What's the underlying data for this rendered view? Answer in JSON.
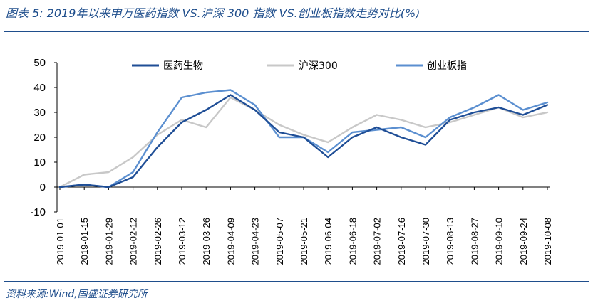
{
  "title": "图表 5:  2019年以来申万医药指数 VS.沪深 300 指数 VS.创业板指数走势对比(%)",
  "source": "资料来源:Wind,国盛证券研究所",
  "colors": {
    "title": "#1f4e8c",
    "pharma": "#1f4e96",
    "csi300": "#c8c8c8",
    "chinext": "#5b8fd0"
  },
  "chart_data": {
    "type": "line",
    "ylim": [
      -10,
      50
    ],
    "yticks": [
      -10,
      0,
      10,
      20,
      30,
      40,
      50
    ],
    "legend_position": "top",
    "categories": [
      "2019-01-01",
      "2019-01-15",
      "2019-01-29",
      "2019-02-12",
      "2019-02-26",
      "2019-03-12",
      "2019-03-26",
      "2019-04-09",
      "2019-04-23",
      "2019-05-07",
      "2019-05-21",
      "2019-06-04",
      "2019-06-18",
      "2019-07-02",
      "2019-07-16",
      "2019-07-30",
      "2019-08-13",
      "2019-08-27",
      "2019-09-10",
      "2019-09-24",
      "2019-10-08"
    ],
    "series": [
      {
        "name": "医药生物",
        "color": "#1f4e96",
        "values": [
          0,
          1,
          0,
          4,
          16,
          26,
          31,
          37,
          31,
          22,
          20,
          12,
          20,
          24,
          20,
          17,
          27,
          30,
          32,
          29,
          33
        ]
      },
      {
        "name": "沪深300",
        "color": "#c8c8c8",
        "values": [
          0,
          5,
          6,
          12,
          21,
          27,
          24,
          36,
          31,
          25,
          21,
          18,
          24,
          29,
          27,
          24,
          26,
          29,
          32,
          28,
          30
        ]
      },
      {
        "name": "创业板指",
        "color": "#5b8fd0",
        "values": [
          0,
          1,
          0,
          6,
          22,
          36,
          38,
          39,
          33,
          20,
          20,
          14,
          22,
          23,
          24,
          20,
          28,
          32,
          37,
          31,
          34
        ]
      }
    ]
  }
}
